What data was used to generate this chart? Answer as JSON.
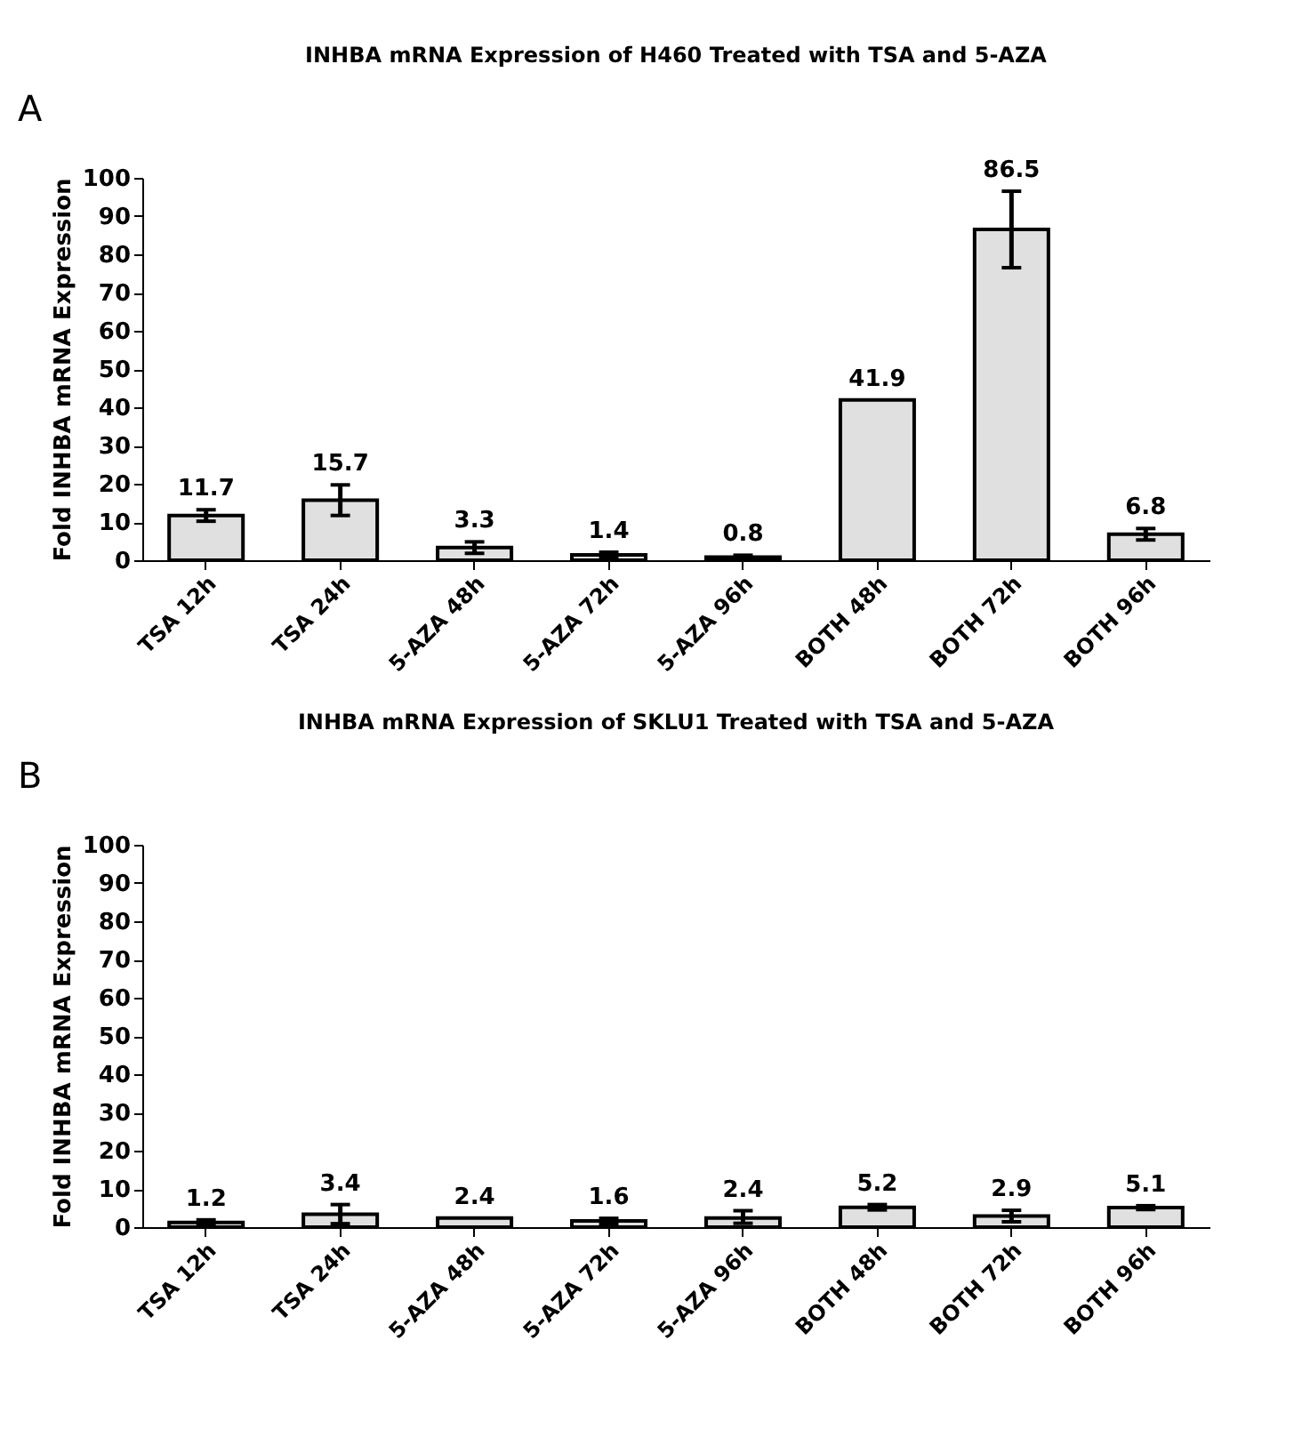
{
  "chart_data": [
    {
      "type": "bar",
      "title": "INHBA mRNA Expression of H460 Treated with TSA and 5-AZA",
      "ylabel": "Fold INHBA mRNA Expression",
      "annotations": [
        "A"
      ],
      "categories": [
        "TSA 12h",
        "TSA 24h",
        "5-AZA 48h",
        "5-AZA 72h",
        "5-AZA 96h",
        "BOTH 48h",
        "BOTH 72h",
        "BOTH 96h"
      ],
      "values": [
        11.7,
        15.7,
        3.3,
        1.4,
        0.8,
        41.9,
        86.5,
        6.8
      ],
      "errors": [
        1.5,
        4,
        1.5,
        0.7,
        0.5,
        null,
        10,
        1.5
      ],
      "color": "#e0e0e0",
      "ylim": [
        0,
        100
      ],
      "yticks": [
        0,
        10,
        20,
        30,
        40,
        50,
        60,
        70,
        80,
        90,
        100
      ],
      "grid": false,
      "data_labels": true
    },
    {
      "type": "bar",
      "title": "INHBA mRNA Expression of SKLU1 Treated with TSA and 5-AZA",
      "ylabel": "Fold INHBA mRNA Expression",
      "annotations": [
        "B"
      ],
      "categories": [
        "TSA 12h",
        "TSA 24h",
        "5-AZA 48h",
        "5-AZA 72h",
        "5-AZA 96h",
        "BOTH 48h",
        "BOTH 72h",
        "BOTH 96h"
      ],
      "values": [
        1.2,
        3.4,
        2.4,
        1.6,
        2.4,
        5.2,
        2.9,
        5.1
      ],
      "errors": [
        0.7,
        2.5,
        null,
        0.7,
        [
          1,
          4.3
        ],
        0.7,
        1.5,
        0.5
      ],
      "color": "#e0e0e0",
      "ylim": [
        0,
        100
      ],
      "yticks": [
        0,
        10,
        20,
        30,
        40,
        50,
        60,
        70,
        80,
        90,
        100
      ],
      "grid": false,
      "data_labels": true
    }
  ]
}
